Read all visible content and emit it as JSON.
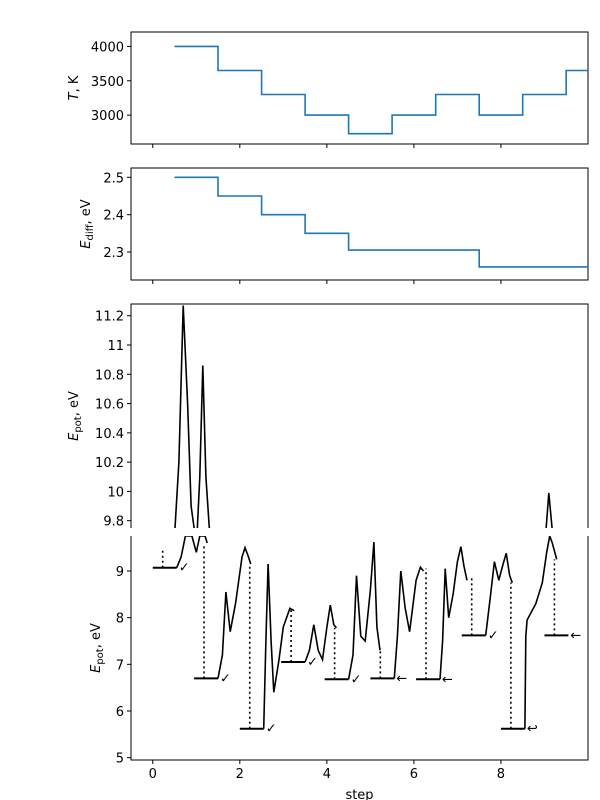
{
  "chart_data": [
    {
      "type": "line",
      "panel": "temperature",
      "style": "step",
      "ylabel": "T, K",
      "ylim": [
        2580,
        4210
      ],
      "xlim": [
        -0.5,
        10.0
      ],
      "yticks": [
        3000,
        3500,
        4000
      ],
      "color": "#1f77b4",
      "steps": [
        {
          "x0": 0.5,
          "x1": 1.5,
          "y": 4000
        },
        {
          "x0": 1.5,
          "x1": 2.5,
          "y": 3650
        },
        {
          "x0": 2.5,
          "x1": 3.5,
          "y": 3300
        },
        {
          "x0": 3.5,
          "x1": 4.5,
          "y": 3000
        },
        {
          "x0": 4.5,
          "x1": 5.5,
          "y": 2730
        },
        {
          "x0": 5.5,
          "x1": 6.5,
          "y": 3000
        },
        {
          "x0": 6.5,
          "x1": 7.5,
          "y": 3300
        },
        {
          "x0": 7.5,
          "x1": 8.5,
          "y": 3000
        },
        {
          "x0": 8.5,
          "x1": 9.5,
          "y": 3300
        },
        {
          "x0": 9.5,
          "x1": 10.0,
          "y": 3650
        }
      ]
    },
    {
      "type": "line",
      "panel": "ediff",
      "style": "step",
      "ylabel": "E_diff, eV",
      "ylim": [
        2.225,
        2.525
      ],
      "xlim": [
        -0.5,
        10.0
      ],
      "yticks": [
        2.3,
        2.4,
        2.5
      ],
      "color": "#1f77b4",
      "steps": [
        {
          "x0": 0.5,
          "x1": 1.5,
          "y": 2.5
        },
        {
          "x0": 1.5,
          "x1": 2.5,
          "y": 2.45
        },
        {
          "x0": 2.5,
          "x1": 3.5,
          "y": 2.4
        },
        {
          "x0": 3.5,
          "x1": 4.5,
          "y": 2.35
        },
        {
          "x0": 4.5,
          "x1": 7.5,
          "y": 2.305
        },
        {
          "x0": 7.5,
          "x1": 10.0,
          "y": 2.26
        }
      ]
    },
    {
      "type": "line",
      "panel": "epot-upper",
      "ylabel": "E_pot, eV",
      "ylim": [
        9.75,
        11.28
      ],
      "xlim": [
        -0.5,
        10.0
      ],
      "yticks": [
        9.8,
        10.0,
        10.2,
        10.4,
        10.6,
        10.8,
        11.0,
        11.2
      ],
      "color": "#000000",
      "trajectory": [
        [
          0.48,
          9.6
        ],
        [
          0.6,
          10.2
        ],
        [
          0.7,
          11.27
        ],
        [
          0.8,
          10.6
        ],
        [
          0.88,
          9.9
        ],
        [
          0.95,
          9.75
        ],
        [
          1.0,
          9.6
        ],
        [
          1.08,
          10.1
        ],
        [
          1.15,
          10.86
        ],
        [
          1.22,
          10.1
        ],
        [
          1.3,
          9.75
        ],
        [
          1.88,
          9.6
        ],
        [
          9.0,
          9.6
        ],
        [
          9.1,
          9.99
        ],
        [
          9.22,
          9.6
        ]
      ]
    },
    {
      "type": "line",
      "panel": "epot-lower",
      "ylabel": "E_pot, eV",
      "xlabel": "step",
      "ylim": [
        4.95,
        9.75
      ],
      "xlim": [
        -0.5,
        10.0
      ],
      "yticks": [
        5,
        6,
        7,
        8,
        9
      ],
      "xticks": [
        0,
        2,
        4,
        6,
        8
      ],
      "color": "#000000",
      "segments": [
        {
          "x0": 0.0,
          "x1": 0.55,
          "min": 9.07,
          "end": 9.45,
          "status": "accepted",
          "marker": "✓",
          "trajectory": [
            [
              0.55,
              9.07
            ],
            [
              0.65,
              9.3
            ],
            [
              0.75,
              9.75
            ],
            [
              0.9,
              9.75
            ],
            [
              1.0,
              9.4
            ],
            [
              1.08,
              9.75
            ],
            [
              1.2,
              9.75
            ],
            [
              1.25,
              9.6
            ]
          ]
        },
        {
          "x0": 0.95,
          "x1": 1.5,
          "min": 6.7,
          "end": 9.55,
          "status": "accepted",
          "marker": "✓",
          "trajectory": [
            [
              1.5,
              6.7
            ],
            [
              1.6,
              7.2
            ],
            [
              1.68,
              8.55
            ],
            [
              1.78,
              7.7
            ],
            [
              1.9,
              8.3
            ],
            [
              2.05,
              9.3
            ],
            [
              2.12,
              9.5
            ],
            [
              2.2,
              9.3
            ],
            [
              2.25,
              9.15
            ]
          ]
        },
        {
          "x0": 2.0,
          "x1": 2.55,
          "min": 5.62,
          "end": 9.15,
          "status": "accepted",
          "marker": "✓",
          "trajectory": [
            [
              2.55,
              5.62
            ],
            [
              2.6,
              7.5
            ],
            [
              2.65,
              9.15
            ],
            [
              2.72,
              7.5
            ],
            [
              2.78,
              6.4
            ],
            [
              2.9,
              7.1
            ],
            [
              3.0,
              7.8
            ],
            [
              3.15,
              8.2
            ],
            [
              3.25,
              8.15
            ]
          ]
        },
        {
          "x0": 2.95,
          "x1": 3.5,
          "min": 7.05,
          "end": 8.2,
          "status": "accepted",
          "marker": "✓",
          "trajectory": [
            [
              3.5,
              7.05
            ],
            [
              3.6,
              7.3
            ],
            [
              3.7,
              7.85
            ],
            [
              3.8,
              7.3
            ],
            [
              3.9,
              7.1
            ],
            [
              4.0,
              7.8
            ],
            [
              4.08,
              8.27
            ],
            [
              4.16,
              7.85
            ],
            [
              4.22,
              7.78
            ]
          ]
        },
        {
          "x0": 3.95,
          "x1": 4.5,
          "min": 6.68,
          "end": 7.78,
          "status": "accepted",
          "marker": "✓",
          "trajectory": [
            [
              4.5,
              6.68
            ],
            [
              4.6,
              7.2
            ],
            [
              4.68,
              8.9
            ],
            [
              4.78,
              7.6
            ],
            [
              4.88,
              7.5
            ],
            [
              5.0,
              8.6
            ],
            [
              5.08,
              9.62
            ],
            [
              5.15,
              7.8
            ],
            [
              5.22,
              7.3
            ]
          ]
        },
        {
          "x0": 5.0,
          "x1": 5.55,
          "min": 6.7,
          "end": 7.35,
          "status": "rejected",
          "marker": "←",
          "trajectory": [
            [
              5.55,
              6.7
            ],
            [
              5.62,
              7.6
            ],
            [
              5.7,
              9.0
            ],
            [
              5.8,
              8.2
            ],
            [
              5.9,
              7.7
            ],
            [
              6.05,
              8.8
            ],
            [
              6.15,
              9.08
            ],
            [
              6.22,
              9.0
            ]
          ]
        },
        {
          "x0": 6.05,
          "x1": 6.6,
          "min": 6.68,
          "end": 9.05,
          "status": "rejected",
          "marker": "←",
          "trajectory": [
            [
              6.6,
              6.68
            ],
            [
              6.66,
              7.5
            ],
            [
              6.72,
              9.05
            ],
            [
              6.8,
              8.0
            ],
            [
              6.9,
              8.5
            ],
            [
              7.0,
              9.2
            ],
            [
              7.08,
              9.52
            ],
            [
              7.15,
              9.1
            ],
            [
              7.22,
              8.8
            ]
          ]
        },
        {
          "x0": 7.1,
          "x1": 7.65,
          "min": 7.62,
          "end": 8.85,
          "status": "accepted",
          "marker": "✓",
          "trajectory": [
            [
              7.65,
              7.62
            ],
            [
              7.75,
              8.4
            ],
            [
              7.85,
              9.2
            ],
            [
              7.95,
              8.8
            ],
            [
              8.05,
              9.15
            ],
            [
              8.12,
              9.38
            ],
            [
              8.2,
              8.9
            ],
            [
              8.26,
              8.75
            ]
          ]
        },
        {
          "x0": 8.0,
          "x1": 8.55,
          "min": 5.62,
          "end": 8.75,
          "status": "rejected",
          "marker": "↩",
          "trajectory": [
            [
              8.55,
              5.62
            ],
            [
              8.57,
              7.6
            ],
            [
              8.6,
              7.95
            ],
            [
              8.8,
              8.3
            ],
            [
              8.95,
              8.75
            ],
            [
              9.05,
              9.4
            ],
            [
              9.12,
              9.75
            ],
            [
              9.18,
              9.6
            ],
            [
              9.28,
              9.25
            ]
          ]
        },
        {
          "x0": 9.0,
          "x1": 9.55,
          "min": 7.62,
          "end": 9.25,
          "status": "rejected",
          "marker": "←",
          "trajectory": []
        }
      ]
    }
  ]
}
